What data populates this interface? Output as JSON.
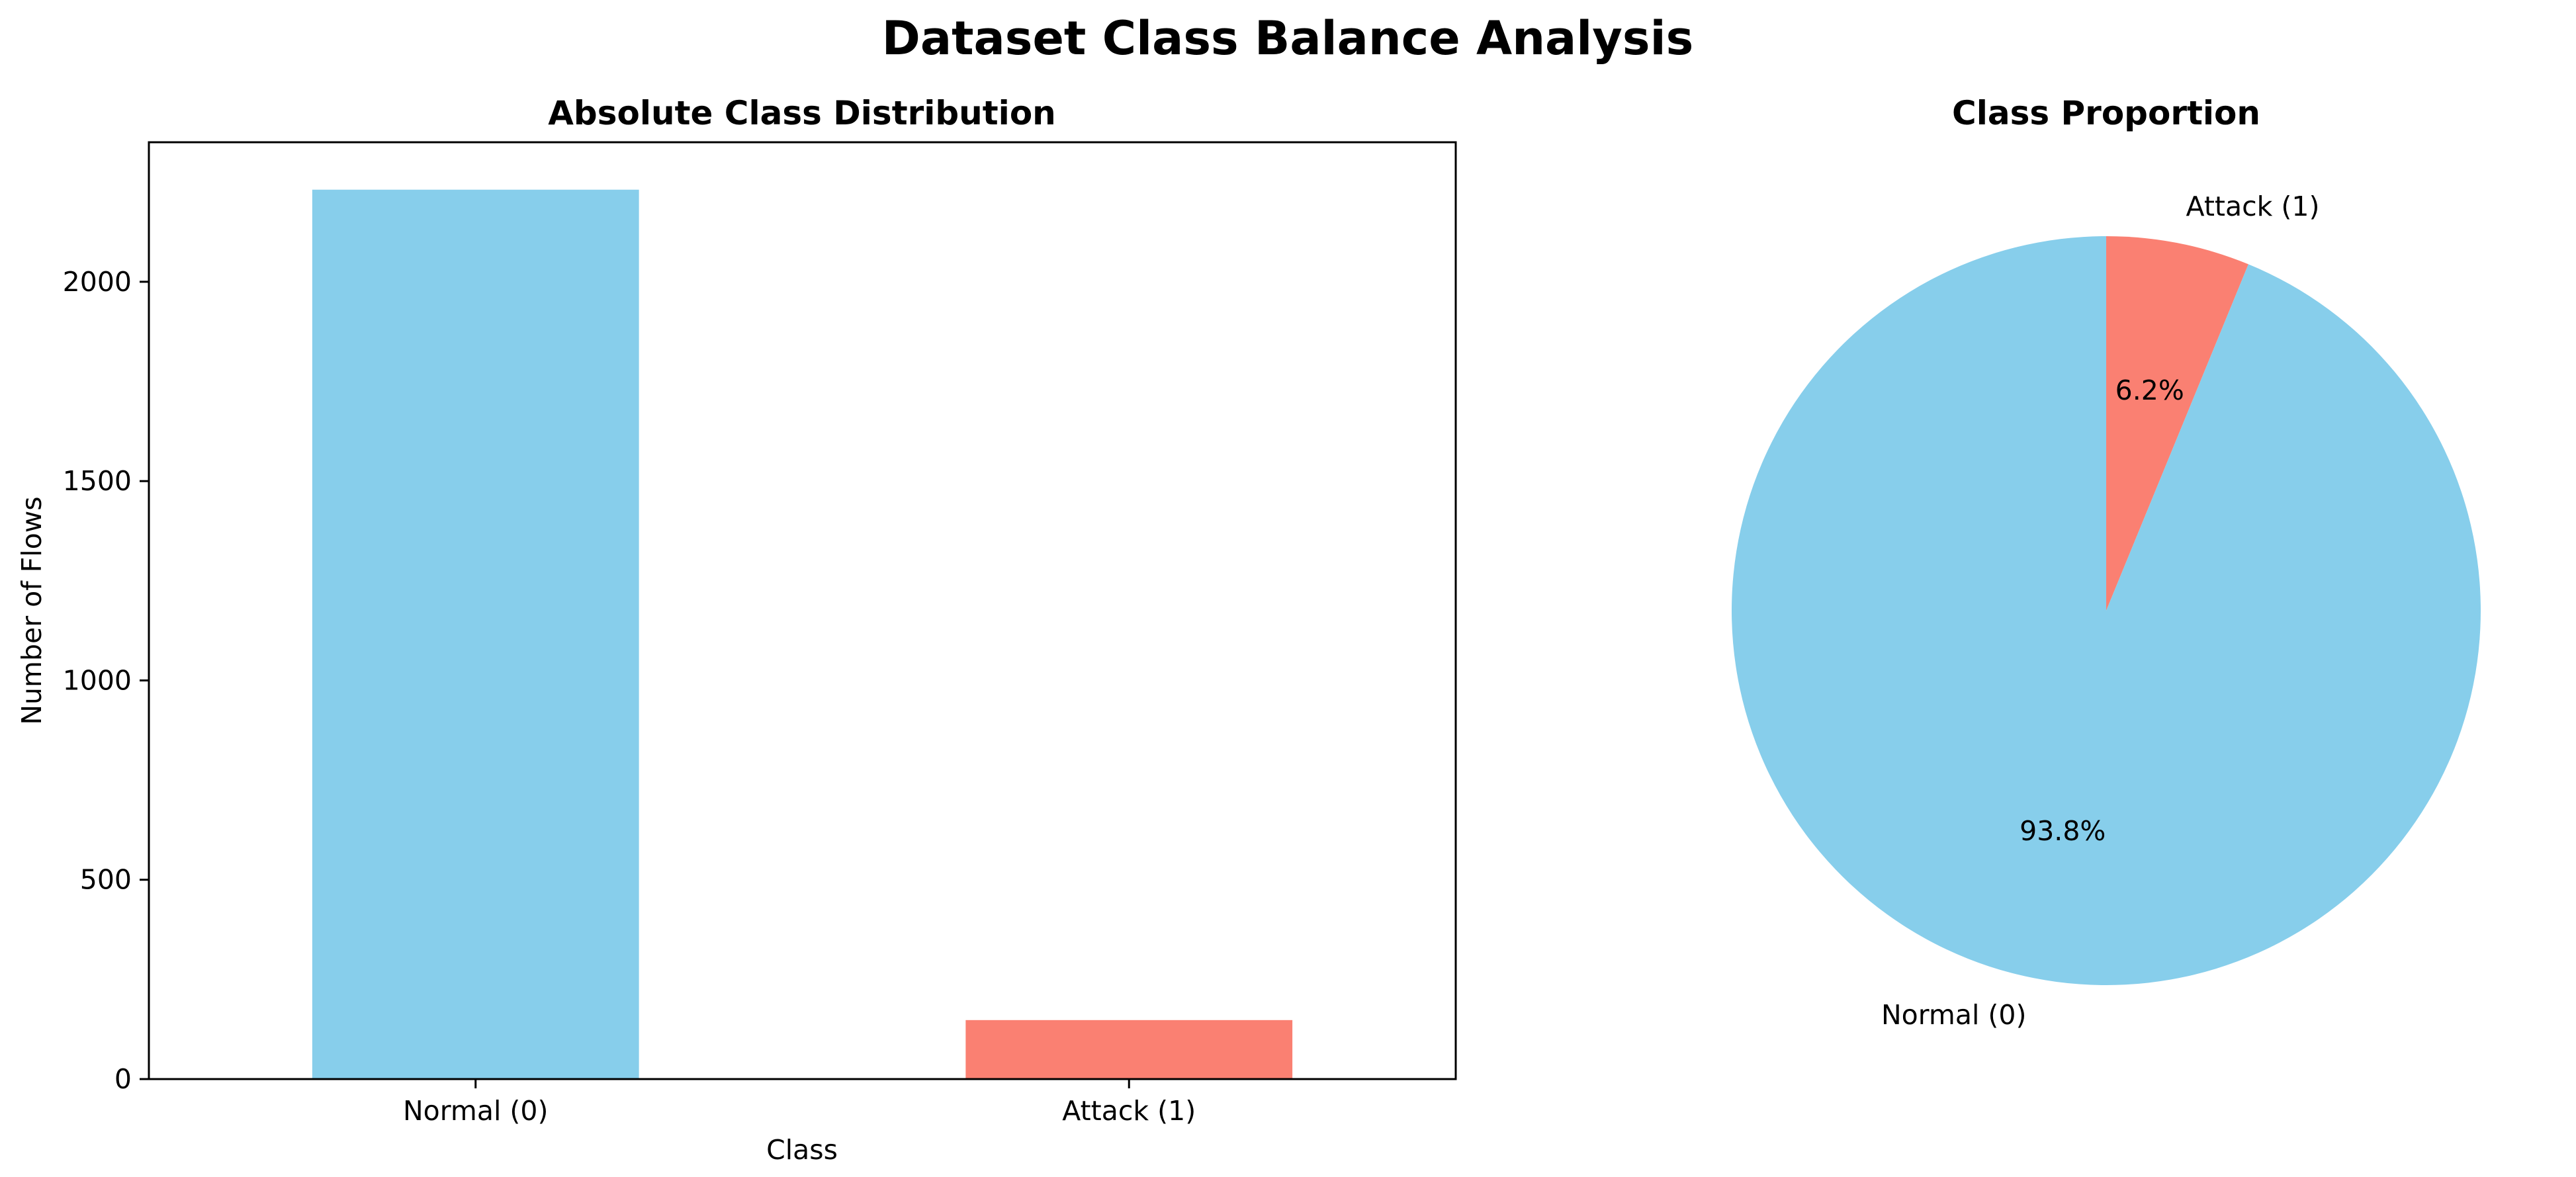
{
  "figure": {
    "title": "Dataset Class Balance Analysis"
  },
  "colors": {
    "normal": "#87CEEB",
    "attack": "#FA8072"
  },
  "chart_data": [
    {
      "type": "bar",
      "title": "Absolute Class Distribution",
      "xlabel": "Class",
      "ylabel": "Number of Flows",
      "categories": [
        "Normal (0)",
        "Attack (1)"
      ],
      "values": [
        2231,
        148
      ],
      "colors": [
        "#87CEEB",
        "#FA8072"
      ],
      "ylim": [
        0,
        2350
      ],
      "yticks": [
        0,
        500,
        1000,
        1500,
        2000
      ],
      "ytick_labels": [
        "0",
        "500",
        "1000",
        "1500",
        "2000"
      ],
      "grid": false,
      "legend": "none"
    },
    {
      "type": "pie",
      "title": "Class Proportion",
      "labels": [
        "Attack (1)",
        "Normal (0)"
      ],
      "values": [
        6.2,
        93.8
      ],
      "pct_labels": [
        "6.2%",
        "93.8%"
      ],
      "colors": [
        "#FA8072",
        "#87CEEB"
      ],
      "start_angle": 90,
      "direction": "clockwise",
      "legend": "none"
    }
  ]
}
